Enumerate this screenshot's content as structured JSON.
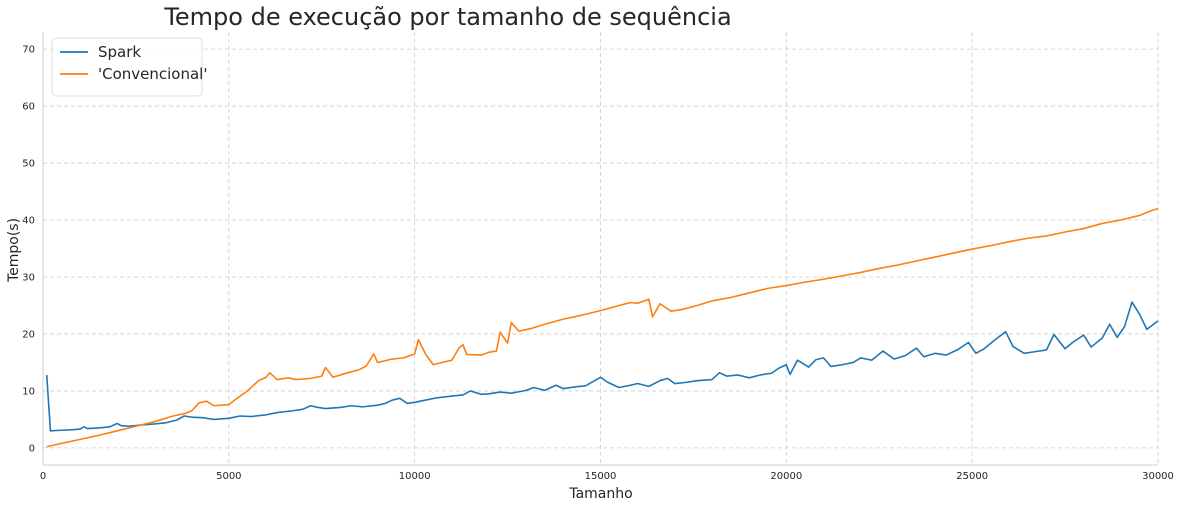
{
  "chart_data": {
    "type": "line",
    "title": "Tempo de execução por tamanho de sequência",
    "xlabel": "Tamanho",
    "ylabel": "Tempo(s)",
    "xlim": [
      0,
      30000
    ],
    "ylim": [
      -3,
      73
    ],
    "xticks": [
      0,
      5000,
      10000,
      15000,
      20000,
      25000,
      30000
    ],
    "yticks": [
      0,
      10,
      20,
      30,
      40,
      50,
      60,
      70
    ],
    "grid": true,
    "legend": "top-left",
    "series": [
      {
        "name": "Spark",
        "color": "#1f77b4",
        "points": [
          [
            100,
            12.8
          ],
          [
            200,
            3.0
          ],
          [
            500,
            3.1
          ],
          [
            800,
            3.2
          ],
          [
            1000,
            3.3
          ],
          [
            1100,
            3.7
          ],
          [
            1200,
            3.4
          ],
          [
            1500,
            3.5
          ],
          [
            1800,
            3.7
          ],
          [
            2000,
            4.3
          ],
          [
            2100,
            3.9
          ],
          [
            2300,
            3.8
          ],
          [
            2600,
            4.0
          ],
          [
            3000,
            4.2
          ],
          [
            3300,
            4.4
          ],
          [
            3600,
            4.9
          ],
          [
            3800,
            5.6
          ],
          [
            4000,
            5.4
          ],
          [
            4300,
            5.3
          ],
          [
            4600,
            5.0
          ],
          [
            5000,
            5.2
          ],
          [
            5300,
            5.6
          ],
          [
            5600,
            5.5
          ],
          [
            6000,
            5.8
          ],
          [
            6300,
            6.2
          ],
          [
            6700,
            6.5
          ],
          [
            7000,
            6.8
          ],
          [
            7200,
            7.4
          ],
          [
            7400,
            7.1
          ],
          [
            7600,
            6.9
          ],
          [
            8000,
            7.1
          ],
          [
            8300,
            7.4
          ],
          [
            8600,
            7.2
          ],
          [
            9000,
            7.5
          ],
          [
            9200,
            7.8
          ],
          [
            9400,
            8.4
          ],
          [
            9600,
            8.7
          ],
          [
            9800,
            7.8
          ],
          [
            10000,
            8.0
          ],
          [
            10300,
            8.4
          ],
          [
            10600,
            8.8
          ],
          [
            11000,
            9.1
          ],
          [
            11300,
            9.3
          ],
          [
            11500,
            10.0
          ],
          [
            11800,
            9.4
          ],
          [
            12000,
            9.5
          ],
          [
            12300,
            9.8
          ],
          [
            12600,
            9.6
          ],
          [
            13000,
            10.1
          ],
          [
            13200,
            10.6
          ],
          [
            13500,
            10.1
          ],
          [
            13800,
            11.0
          ],
          [
            14000,
            10.4
          ],
          [
            14300,
            10.7
          ],
          [
            14600,
            10.9
          ],
          [
            15000,
            12.4
          ],
          [
            15200,
            11.5
          ],
          [
            15500,
            10.6
          ],
          [
            15800,
            11.0
          ],
          [
            16000,
            11.3
          ],
          [
            16300,
            10.8
          ],
          [
            16600,
            11.8
          ],
          [
            16800,
            12.2
          ],
          [
            17000,
            11.3
          ],
          [
            17300,
            11.5
          ],
          [
            17600,
            11.8
          ],
          [
            18000,
            12.0
          ],
          [
            18200,
            13.2
          ],
          [
            18400,
            12.6
          ],
          [
            18700,
            12.8
          ],
          [
            19000,
            12.3
          ],
          [
            19300,
            12.8
          ],
          [
            19600,
            13.1
          ],
          [
            19800,
            14.0
          ],
          [
            20000,
            14.6
          ],
          [
            20100,
            12.9
          ],
          [
            20300,
            15.4
          ],
          [
            20600,
            14.2
          ],
          [
            20800,
            15.5
          ],
          [
            21000,
            15.8
          ],
          [
            21200,
            14.3
          ],
          [
            21500,
            14.6
          ],
          [
            21800,
            15.0
          ],
          [
            22000,
            15.8
          ],
          [
            22300,
            15.4
          ],
          [
            22600,
            17.0
          ],
          [
            22900,
            15.6
          ],
          [
            23200,
            16.2
          ],
          [
            23500,
            17.5
          ],
          [
            23700,
            16.0
          ],
          [
            24000,
            16.6
          ],
          [
            24300,
            16.3
          ],
          [
            24600,
            17.2
          ],
          [
            24900,
            18.5
          ],
          [
            25100,
            16.6
          ],
          [
            25300,
            17.3
          ],
          [
            25600,
            18.9
          ],
          [
            25900,
            20.4
          ],
          [
            26100,
            17.8
          ],
          [
            26400,
            16.6
          ],
          [
            26700,
            16.9
          ],
          [
            27000,
            17.2
          ],
          [
            27200,
            19.9
          ],
          [
            27500,
            17.4
          ],
          [
            27700,
            18.5
          ],
          [
            28000,
            19.8
          ],
          [
            28200,
            17.7
          ],
          [
            28500,
            19.3
          ],
          [
            28700,
            21.7
          ],
          [
            28900,
            19.4
          ],
          [
            29100,
            21.3
          ],
          [
            29300,
            25.6
          ],
          [
            29500,
            23.5
          ],
          [
            29700,
            20.8
          ],
          [
            30000,
            22.3
          ]
        ]
      },
      {
        "name": "'Convencional'",
        "color": "#ff7f0e",
        "points": [
          [
            100,
            0.2
          ],
          [
            500,
            0.8
          ],
          [
            1000,
            1.5
          ],
          [
            1500,
            2.2
          ],
          [
            2000,
            3.0
          ],
          [
            2500,
            3.8
          ],
          [
            3000,
            4.6
          ],
          [
            3500,
            5.6
          ],
          [
            3800,
            6.0
          ],
          [
            4000,
            6.5
          ],
          [
            4200,
            7.9
          ],
          [
            4400,
            8.2
          ],
          [
            4600,
            7.4
          ],
          [
            5000,
            7.6
          ],
          [
            5200,
            8.6
          ],
          [
            5500,
            10.0
          ],
          [
            5800,
            11.8
          ],
          [
            6000,
            12.4
          ],
          [
            6100,
            13.2
          ],
          [
            6300,
            12.0
          ],
          [
            6600,
            12.3
          ],
          [
            6800,
            12.0
          ],
          [
            7200,
            12.2
          ],
          [
            7500,
            12.6
          ],
          [
            7600,
            14.1
          ],
          [
            7800,
            12.4
          ],
          [
            8200,
            13.2
          ],
          [
            8500,
            13.7
          ],
          [
            8700,
            14.4
          ],
          [
            8900,
            16.5
          ],
          [
            9000,
            15.0
          ],
          [
            9400,
            15.6
          ],
          [
            9700,
            15.8
          ],
          [
            10000,
            16.5
          ],
          [
            10100,
            19.0
          ],
          [
            10300,
            16.4
          ],
          [
            10500,
            14.6
          ],
          [
            10800,
            15.1
          ],
          [
            11000,
            15.4
          ],
          [
            11200,
            17.6
          ],
          [
            11300,
            18.1
          ],
          [
            11400,
            16.4
          ],
          [
            11800,
            16.3
          ],
          [
            12000,
            16.8
          ],
          [
            12200,
            17.0
          ],
          [
            12300,
            20.3
          ],
          [
            12500,
            18.4
          ],
          [
            12600,
            22.0
          ],
          [
            12800,
            20.5
          ],
          [
            13100,
            20.9
          ],
          [
            13500,
            21.7
          ],
          [
            14000,
            22.6
          ],
          [
            14500,
            23.3
          ],
          [
            15000,
            24.1
          ],
          [
            15500,
            25.0
          ],
          [
            15800,
            25.5
          ],
          [
            16000,
            25.4
          ],
          [
            16300,
            26.1
          ],
          [
            16400,
            23.0
          ],
          [
            16600,
            25.3
          ],
          [
            16900,
            24.0
          ],
          [
            17200,
            24.3
          ],
          [
            17600,
            25.0
          ],
          [
            18000,
            25.8
          ],
          [
            18500,
            26.4
          ],
          [
            19000,
            27.2
          ],
          [
            19500,
            28.0
          ],
          [
            20000,
            28.5
          ],
          [
            20500,
            29.1
          ],
          [
            21000,
            29.6
          ],
          [
            21500,
            30.2
          ],
          [
            22000,
            30.8
          ],
          [
            22500,
            31.5
          ],
          [
            23000,
            32.1
          ],
          [
            23500,
            32.8
          ],
          [
            24000,
            33.5
          ],
          [
            24500,
            34.2
          ],
          [
            25000,
            34.9
          ],
          [
            25500,
            35.5
          ],
          [
            26000,
            36.2
          ],
          [
            26500,
            36.8
          ],
          [
            27000,
            37.2
          ],
          [
            27500,
            37.9
          ],
          [
            28000,
            38.5
          ],
          [
            28500,
            39.4
          ],
          [
            29000,
            40.0
          ],
          [
            29500,
            40.8
          ],
          [
            29800,
            41.6
          ],
          [
            30000,
            42.0
          ]
        ]
      }
    ]
  }
}
